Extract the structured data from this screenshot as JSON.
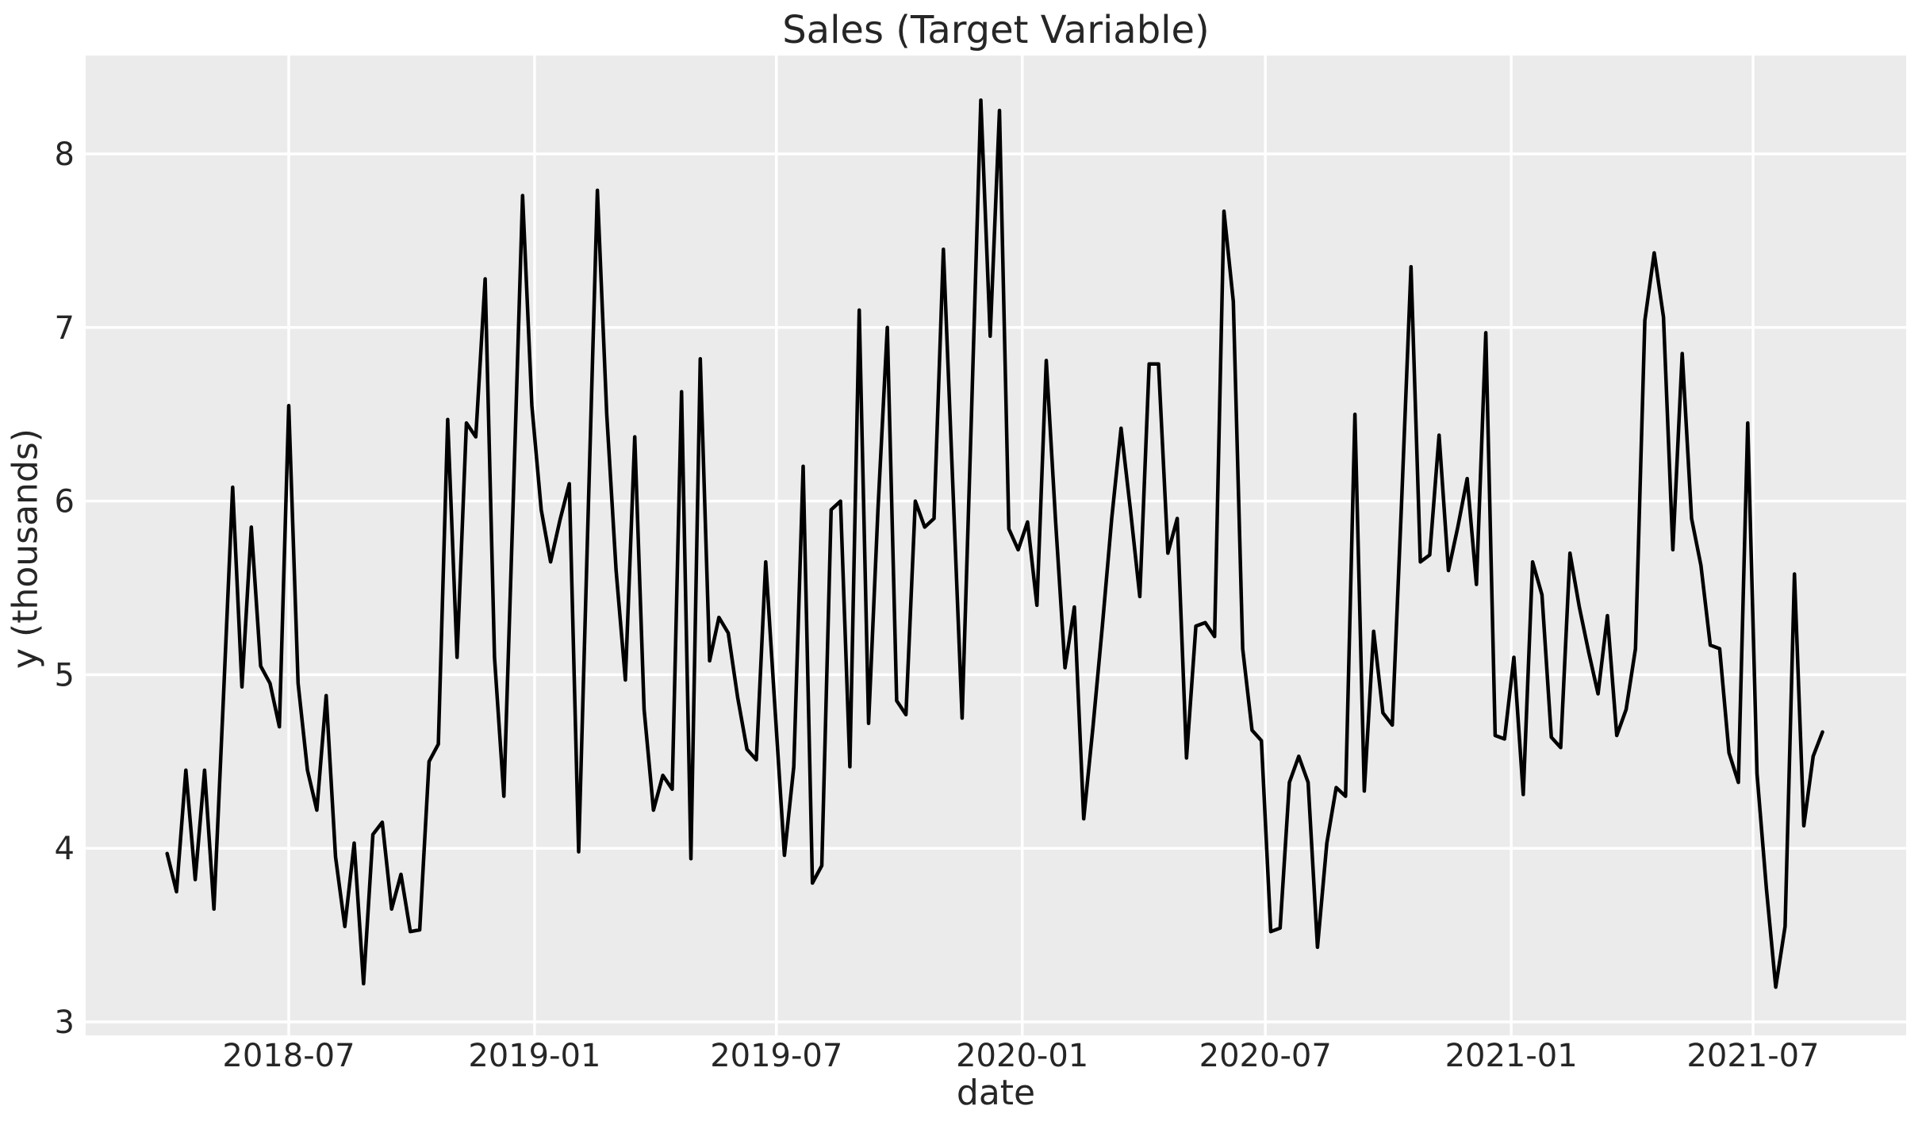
{
  "chart_data": {
    "type": "line",
    "title": "Sales (Target Variable)",
    "xlabel": "date",
    "ylabel": "y (thousands)",
    "grid": true,
    "legend_position": "none",
    "y_ticks": [
      3,
      4,
      5,
      6,
      7,
      8
    ],
    "ylim": [
      2.92,
      8.57
    ],
    "x_ticks": [
      {
        "label": "2018-07",
        "date": "2018-07-01"
      },
      {
        "label": "2019-01",
        "date": "2019-01-01"
      },
      {
        "label": "2019-07",
        "date": "2019-07-01"
      },
      {
        "label": "2020-01",
        "date": "2020-01-01"
      },
      {
        "label": "2020-07",
        "date": "2020-07-01"
      },
      {
        "label": "2021-01",
        "date": "2021-01-01"
      },
      {
        "label": "2021-07",
        "date": "2021-07-01"
      }
    ],
    "x_start_date": "2018-04-01",
    "interval_days": 7,
    "series": [
      {
        "name": "sales",
        "values": [
          3.97,
          3.75,
          4.45,
          3.82,
          4.45,
          3.65,
          4.85,
          6.08,
          4.93,
          5.85,
          5.05,
          4.95,
          4.7,
          6.55,
          4.95,
          4.45,
          4.22,
          4.88,
          3.95,
          3.55,
          4.03,
          3.22,
          4.08,
          4.15,
          3.65,
          3.85,
          3.52,
          3.53,
          4.5,
          4.6,
          6.47,
          5.1,
          6.45,
          6.37,
          7.28,
          5.1,
          4.3,
          6.0,
          7.76,
          6.55,
          5.95,
          5.65,
          5.89,
          6.1,
          3.98,
          5.9,
          7.79,
          6.5,
          5.6,
          4.97,
          6.37,
          4.8,
          4.22,
          4.42,
          4.34,
          6.63,
          3.94,
          6.82,
          5.08,
          5.33,
          5.24,
          4.87,
          4.57,
          4.51,
          5.65,
          4.8,
          3.96,
          4.47,
          6.2,
          3.8,
          3.9,
          5.95,
          6.0,
          4.47,
          7.1,
          4.72,
          5.95,
          7.0,
          4.85,
          4.77,
          6.0,
          5.85,
          5.9,
          7.45,
          6.1,
          4.75,
          6.5,
          8.31,
          6.95,
          8.25,
          5.84,
          5.72,
          5.88,
          5.4,
          6.81,
          5.88,
          5.04,
          5.39,
          4.17,
          4.7,
          5.28,
          5.9,
          6.42,
          5.95,
          5.45,
          6.79,
          6.79,
          5.7,
          5.9,
          4.52,
          5.28,
          5.3,
          5.22,
          7.67,
          7.15,
          5.15,
          4.68,
          4.62,
          3.52,
          3.54,
          4.38,
          4.53,
          4.38,
          3.43,
          4.03,
          4.35,
          4.3,
          6.5,
          4.33,
          5.25,
          4.78,
          4.71,
          6.0,
          7.35,
          5.65,
          5.69,
          6.38,
          5.6,
          5.85,
          6.13,
          5.52,
          6.97,
          4.65,
          4.63,
          5.1,
          4.31,
          5.65,
          5.46,
          4.64,
          4.58,
          5.7,
          5.39,
          5.13,
          4.89,
          5.34,
          4.65,
          4.8,
          5.15,
          7.04,
          7.43,
          7.06,
          5.72,
          6.85,
          5.9,
          5.63,
          5.17,
          5.15,
          4.55,
          4.38,
          6.45,
          4.43,
          3.77,
          3.2,
          3.55,
          5.58,
          4.13,
          4.53,
          4.67
        ]
      }
    ],
    "styling": {
      "figure_background": "#ffffff",
      "plot_background": "#ebebeb",
      "grid_color": "#ffffff",
      "line_color": "#000000",
      "text_color": "#262626"
    }
  }
}
